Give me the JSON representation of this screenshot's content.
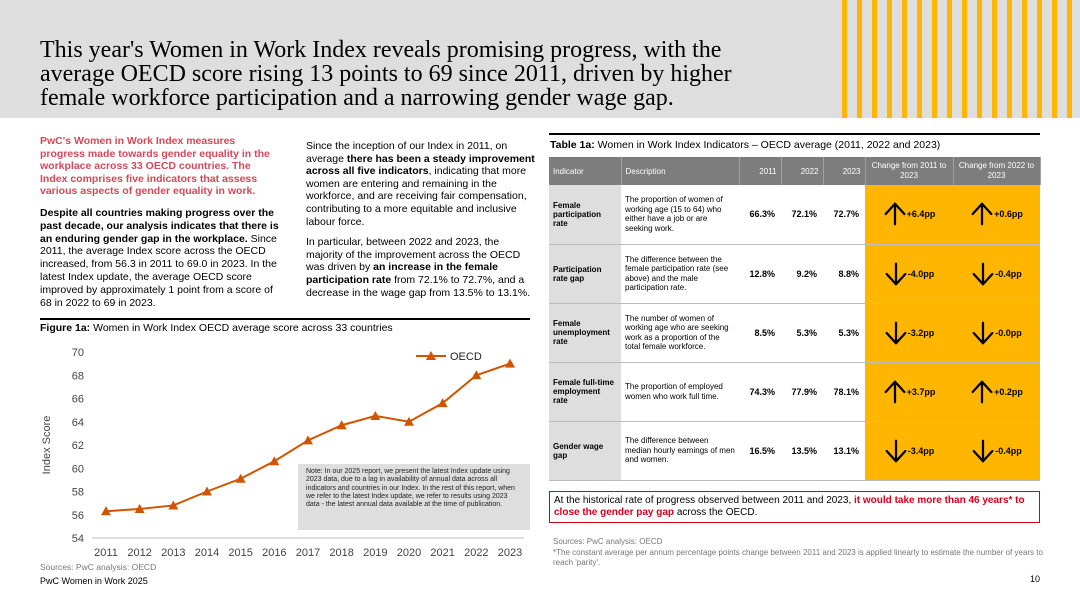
{
  "header": {
    "title": "This year's Women in Work Index reveals promising progress, with the average OECD score rising 13 points to 69 since 2011, driven by higher female workforce participation and a narrowing gender wage gap."
  },
  "intro": {
    "red": "PwC's Women in Work Index measures progress made towards gender equality in the workplace across 33 OECD countries. The Index comprises five indicators that assess various aspects of gender equality in work.",
    "bold": "Despite all countries making progress over the past decade, our analysis indicates that there is an enduring gender gap in the workplace.",
    "rest": " Since 2011, the average Index score across the OECD increased, from 56.3 in 2011 to 69.0 in 2023. In the latest Index update, the average OECD score improved by approximately 1 point from a score of 68 in 2022 to 69 in 2023."
  },
  "middle": {
    "p1a": "Since the inception of our Index in 2011, on average ",
    "p1b": "there has been a steady improvement across all five indicators",
    "p1c": ", indicating that more women are entering and remaining in the workforce, and are receiving fair compensation, contributing to a more equitable and inclusive labour force.",
    "p2a": "In particular, between 2022 and 2023, the majority of the improvement across the OECD was driven by ",
    "p2b": "an increase in the female participation rate",
    "p2c": " from 72.1% to 72.7%, and a decrease in the wage gap from 13.5% to 13.1%."
  },
  "figure": {
    "label": "Figure 1a:",
    "caption": " Women in Work Index OECD average score across 33 countries",
    "note": "Note: In our 2025 report, we present the latest Index update using 2023 data, due to a lag in availability of annual data across all indicators and countries in our Index. In the rest of this report, when we refer to the latest Index update, we refer to results using 2023 data - the latest annual data available at the time of publication.",
    "source": "Sources: PwC analysis: OECD"
  },
  "chart_data": {
    "type": "line",
    "x": [
      "2011",
      "2012",
      "2013",
      "2014",
      "2015",
      "2016",
      "2017",
      "2018",
      "2019",
      "2020",
      "2021",
      "2022",
      "2023"
    ],
    "series": [
      {
        "name": "OECD",
        "values": [
          56.3,
          56.5,
          56.8,
          58.0,
          59.1,
          60.6,
          62.4,
          63.7,
          64.5,
          64.0,
          65.6,
          68.0,
          69.0
        ]
      }
    ],
    "ylabel": "Index Score",
    "ylim": [
      54,
      70
    ],
    "yticks": [
      "54",
      "56",
      "58",
      "60",
      "62",
      "64",
      "66",
      "68",
      "70"
    ],
    "color": "#d35400",
    "legend": "top-right"
  },
  "table": {
    "label": "Table 1a:",
    "caption": " Women in Work Index Indicators – OECD average (2011, 2022 and 2023)",
    "headers": [
      "Indicator",
      "Description",
      "2011",
      "2022",
      "2023",
      "Change from 2011 to 2023",
      "Change from 2022 to 2023"
    ],
    "rows": [
      {
        "indicator": "Female participation rate",
        "description": "The proportion of women of working age (15 to 64) who either have a job or are seeking work.",
        "v2011": "66.3%",
        "v2022": "72.1%",
        "v2023": "72.7%",
        "chg1": "+6.4pp",
        "dir1": "up",
        "chg2": "+0.6pp",
        "dir2": "up"
      },
      {
        "indicator": "Participation rate gap",
        "description": "The difference between the female participation rate (see above) and the male participation rate.",
        "v2011": "12.8%",
        "v2022": "9.2%",
        "v2023": "8.8%",
        "chg1": "-4.0pp",
        "dir1": "down",
        "chg2": "-0.4pp",
        "dir2": "down"
      },
      {
        "indicator": "Female unemployment rate",
        "description": "The number of women of working age who are seeking work as a proportion of the total female workforce.",
        "v2011": "8.5%",
        "v2022": "5.3%",
        "v2023": "5.3%",
        "chg1": "-3.2pp",
        "dir1": "down",
        "chg2": "-0.0pp",
        "dir2": "down"
      },
      {
        "indicator": "Female full-time employment rate",
        "description": "The proportion of employed women who work full time.",
        "v2011": "74.3%",
        "v2022": "77.9%",
        "v2023": "78.1%",
        "chg1": "+3.7pp",
        "dir1": "up",
        "chg2": "+0.2pp",
        "dir2": "up"
      },
      {
        "indicator": "Gender wage gap",
        "description": "The difference between median hourly earnings of men and women.",
        "v2011": "16.5%",
        "v2022": "13.5%",
        "v2023": "13.1%",
        "chg1": "-3.4pp",
        "dir1": "down",
        "chg2": "-0.4pp",
        "dir2": "down"
      }
    ]
  },
  "callout": {
    "a": "At the historical rate of progress observed between 2011 and 2023, ",
    "b": "it would take more than 46 years* to close the gender pay gap",
    "c": " across the OECD."
  },
  "sources_right": {
    "line1": "Sources: PwC analysis: OECD",
    "line2": "*The constant average per annum percentage points change between 2011 and 2023 is applied linearly to estimate the number of years to reach 'parity'."
  },
  "footer": {
    "left": "PwC Women in Work 2025",
    "page": "10"
  },
  "colors": {
    "accent": "#ffb600",
    "intro_red": "#d04a5a",
    "callout_red": "#d0021b",
    "line": "#d35400",
    "header_bg": "#dedede"
  }
}
